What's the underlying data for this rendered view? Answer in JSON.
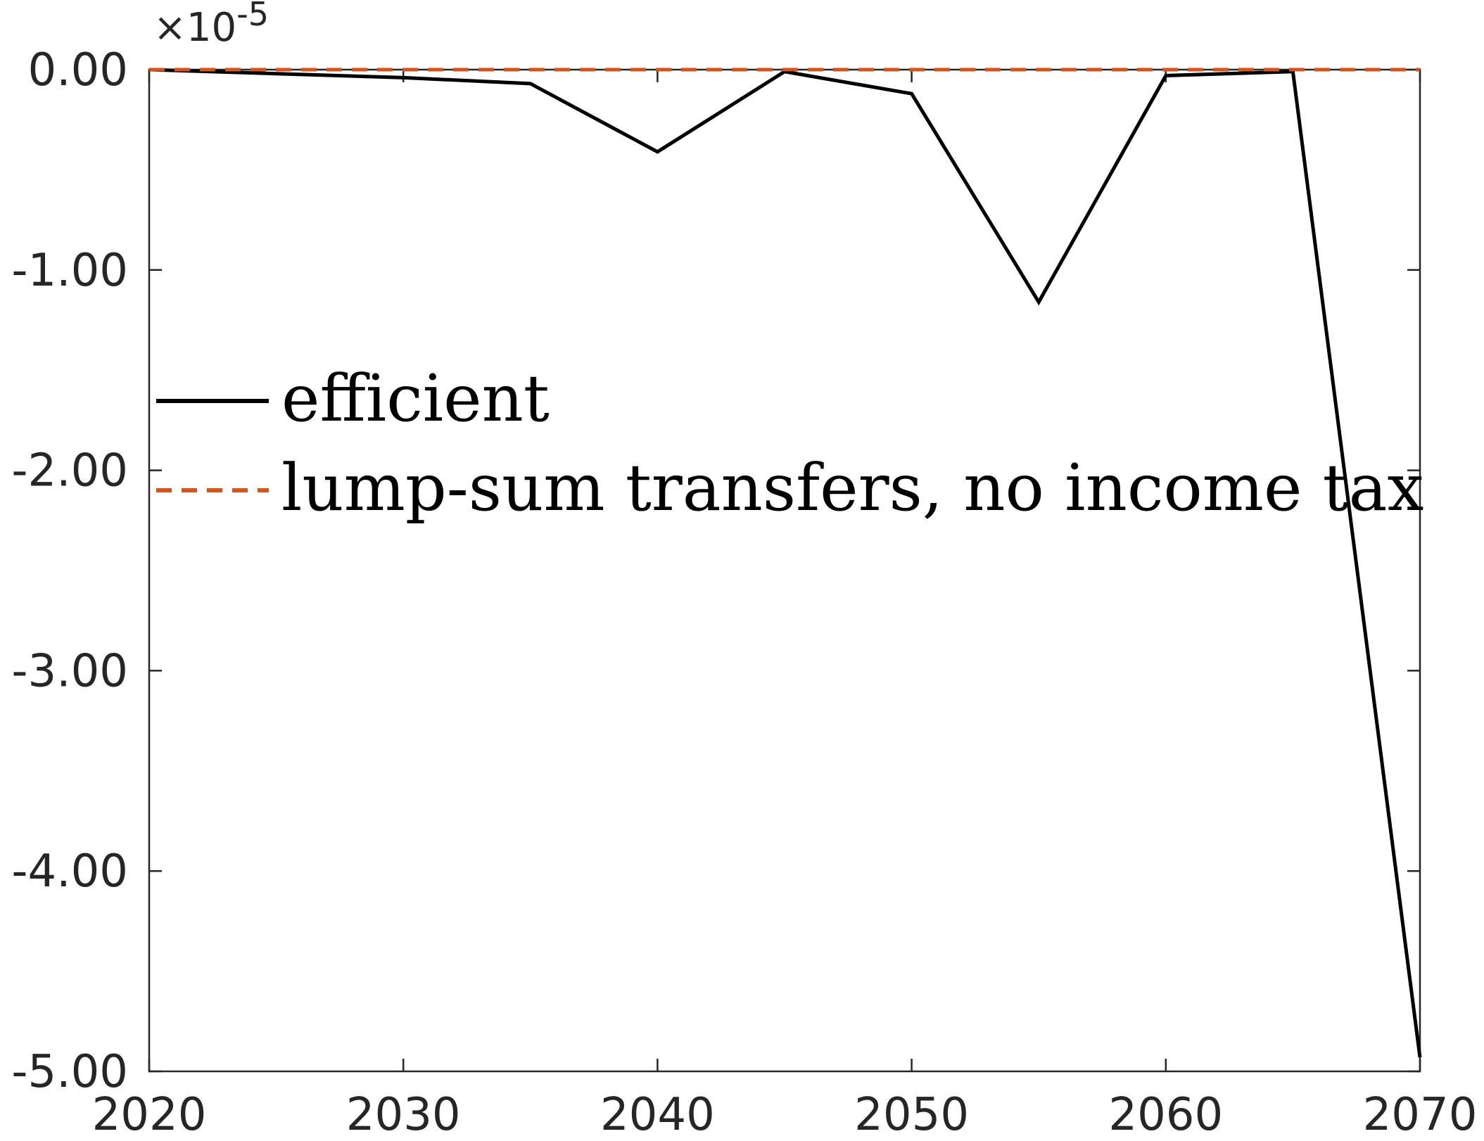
{
  "chart_data": {
    "type": "line",
    "title": "",
    "xlabel": "",
    "ylabel": "",
    "xlim": [
      2020,
      2070
    ],
    "ylim": [
      -5.0,
      0.0
    ],
    "xticks": [
      2020,
      2030,
      2040,
      2050,
      2060,
      2070
    ],
    "xtick_labels": [
      "2020",
      "2030",
      "2040",
      "2050",
      "2060",
      "2070"
    ],
    "yticks": [
      0.0,
      -1.0,
      -2.0,
      -3.0,
      -4.0,
      -5.0
    ],
    "ytick_labels": [
      "0.00",
      "-1.00",
      "-2.00",
      "-3.00",
      "-4.00",
      "-5.00"
    ],
    "y_exponent_label": "×10",
    "y_exponent_power": "-5",
    "legend_position": "center-left",
    "grid": false,
    "x": [
      2020,
      2025,
      2030,
      2035,
      2040,
      2045,
      2050,
      2055,
      2060,
      2065,
      2070
    ],
    "series": [
      {
        "name": "efficient",
        "color": "#000000",
        "style": "solid",
        "values": [
          0.0,
          -0.02,
          -0.04,
          -0.07,
          -0.41,
          -0.01,
          -0.12,
          -1.16,
          -0.03,
          -0.01,
          -4.93
        ]
      },
      {
        "name": "lump-sum transfers, no income tax",
        "color": "#D95319",
        "style": "dashed",
        "values": [
          0.0,
          0.0,
          0.0,
          0.0,
          0.0,
          0.0,
          0.0,
          0.0,
          0.0,
          0.0,
          0.0
        ]
      }
    ]
  }
}
